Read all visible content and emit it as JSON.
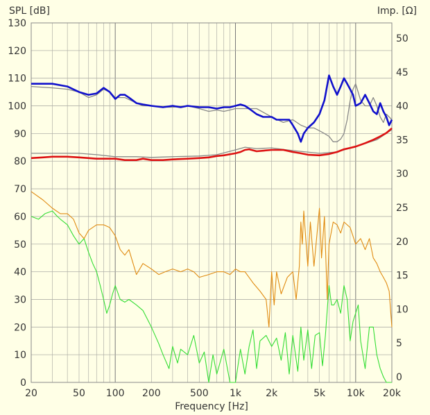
{
  "chart_data": {
    "type": "line",
    "left_axis_title": "SPL [dB]",
    "right_axis_title": "Imp. [Ω]",
    "xlabel": "Frequency [Hz]",
    "x_scale": "log",
    "xlim": [
      20,
      20000
    ],
    "ylim_left": [
      0,
      130
    ],
    "ylim_right": [
      0,
      50
    ],
    "grid": true,
    "x_tick_labels": [
      {
        "value": 20,
        "label": "20"
      },
      {
        "value": 50,
        "label": "50"
      },
      {
        "value": 100,
        "label": "100"
      },
      {
        "value": 200,
        "label": "200"
      },
      {
        "value": 500,
        "label": "500"
      },
      {
        "value": 1000,
        "label": "1k"
      },
      {
        "value": 2000,
        "label": "2k"
      },
      {
        "value": 5000,
        "label": "5k"
      },
      {
        "value": 10000,
        "label": "10k"
      },
      {
        "value": 20000,
        "label": "20k"
      }
    ],
    "y_left_ticks": [
      "0",
      "10",
      "20",
      "30",
      "40",
      "50",
      "60",
      "70",
      "80",
      "90",
      "100",
      "110",
      "120",
      "130"
    ],
    "y_right_ticks": [
      "0",
      "5",
      "10",
      "15",
      "20",
      "25",
      "30",
      "35",
      "40",
      "45",
      "50"
    ],
    "colors": {
      "background": "#ffffe6",
      "grid": "#b0b0a8",
      "frame": "#888888",
      "spl": "#1010cc",
      "spl_ref": "#888888",
      "impedance": "#dd1111",
      "impedance_ref": "#888888",
      "second_harmonic": "#e08a10",
      "third_harmonic": "#33dd33"
    },
    "series": [
      {
        "id": "spl_ref",
        "axis": "left",
        "x": [
          20,
          30,
          40,
          50,
          60,
          70,
          80,
          90,
          100,
          120,
          150,
          170,
          200,
          250,
          300,
          400,
          500,
          600,
          700,
          800,
          900,
          1000,
          1200,
          1500,
          2000,
          2500,
          3000,
          3500,
          4000,
          4500,
          5000,
          5500,
          6000,
          6500,
          7000,
          7500,
          8000,
          8500,
          9000,
          9500,
          10000,
          11000,
          12000,
          13000,
          14000,
          15000,
          16000,
          17000,
          18000,
          19000,
          20000
        ],
        "y": [
          107,
          106.5,
          106,
          105,
          103,
          104,
          106,
          105,
          103,
          103,
          101,
          100,
          100,
          99.5,
          99.5,
          100,
          99,
          98,
          98.5,
          98,
          98.5,
          99,
          99,
          99,
          96,
          94,
          95,
          93,
          92,
          92,
          91,
          90,
          89,
          87,
          87,
          88,
          90,
          95,
          102,
          106,
          108,
          102,
          100,
          100,
          103,
          100,
          96,
          94,
          97,
          96,
          95
        ]
      },
      {
        "id": "spl",
        "axis": "left",
        "x": [
          20,
          30,
          40,
          50,
          60,
          70,
          80,
          90,
          100,
          110,
          120,
          130,
          150,
          170,
          200,
          250,
          300,
          350,
          400,
          500,
          600,
          700,
          800,
          900,
          1000,
          1100,
          1200,
          1300,
          1500,
          1700,
          2000,
          2200,
          2500,
          2800,
          3000,
          3300,
          3500,
          3700,
          4000,
          4500,
          5000,
          5500,
          6000,
          6500,
          7000,
          7500,
          8000,
          8500,
          9000,
          9500,
          10000,
          11000,
          12000,
          13000,
          14000,
          15000,
          16000,
          17000,
          18000,
          19000,
          20000
        ],
        "y": [
          108,
          108,
          107,
          105,
          104,
          104.5,
          106.5,
          105,
          102.5,
          104,
          104,
          103,
          101,
          100.5,
          100,
          99.5,
          100,
          99.5,
          100,
          99.5,
          99.5,
          99,
          99.5,
          99.5,
          100,
          100.5,
          100,
          99,
          97,
          96,
          96,
          95,
          95,
          95,
          93,
          90,
          87,
          90,
          92,
          94,
          97,
          102,
          111,
          107,
          104,
          107,
          110,
          108,
          106,
          104,
          100,
          101,
          104,
          101,
          98,
          97,
          101,
          98,
          96,
          93,
          95
        ]
      },
      {
        "id": "imp_ref",
        "axis": "right",
        "x": [
          20,
          30,
          50,
          70,
          100,
          150,
          200,
          300,
          500,
          700,
          1000,
          1200,
          1500,
          2000,
          3000,
          5000,
          7000,
          10000,
          15000,
          20000
        ],
        "y": [
          33,
          33,
          33,
          32.8,
          32.5,
          32.5,
          32.4,
          32.5,
          32.6,
          32.8,
          33.5,
          33.9,
          33.7,
          33.8,
          33.4,
          33,
          33.2,
          34,
          35,
          36.5
        ]
      },
      {
        "id": "impedance",
        "axis": "right",
        "x": [
          20,
          25,
          30,
          40,
          50,
          60,
          70,
          80,
          100,
          120,
          150,
          170,
          200,
          250,
          300,
          400,
          500,
          600,
          700,
          800,
          1000,
          1100,
          1200,
          1300,
          1500,
          2000,
          2500,
          3000,
          3500,
          4000,
          5000,
          6000,
          7000,
          8000,
          9000,
          10000,
          12000,
          14000,
          16000,
          18000,
          20000
        ],
        "y": [
          32.3,
          32.4,
          32.5,
          32.5,
          32.4,
          32.3,
          32.2,
          32.2,
          32.2,
          32,
          32,
          32.2,
          32,
          32,
          32.1,
          32.2,
          32.3,
          32.4,
          32.6,
          32.7,
          33,
          33.2,
          33.5,
          33.6,
          33.3,
          33.5,
          33.5,
          33.2,
          33,
          32.8,
          32.7,
          32.9,
          33.2,
          33.6,
          33.8,
          34,
          34.5,
          35,
          35.5,
          36,
          36.7
        ]
      },
      {
        "id": "second_harmonic",
        "axis": "left",
        "x": [
          20,
          25,
          30,
          35,
          40,
          45,
          50,
          55,
          60,
          70,
          80,
          90,
          100,
          110,
          120,
          130,
          150,
          170,
          200,
          230,
          260,
          300,
          350,
          400,
          450,
          500,
          600,
          700,
          800,
          900,
          1000,
          1100,
          1200,
          1400,
          1600,
          1800,
          1900,
          2000,
          2100,
          2200,
          2400,
          2700,
          3000,
          3200,
          3400,
          3500,
          3600,
          3700,
          3800,
          4000,
          4200,
          4500,
          4800,
          5000,
          5200,
          5500,
          5800,
          6000,
          6500,
          7000,
          7500,
          8000,
          9000,
          10000,
          11000,
          12000,
          13000,
          14000,
          15000,
          16000,
          17000,
          18000,
          19000,
          20000
        ],
        "y": [
          69,
          66,
          63,
          61,
          61,
          59,
          54,
          52,
          55,
          57,
          57,
          56,
          53,
          48,
          46,
          48,
          39,
          43,
          41,
          39,
          40,
          41,
          40,
          41,
          40,
          38,
          39,
          40,
          40,
          39,
          41,
          40,
          40,
          36,
          33,
          30,
          20,
          40,
          28,
          40,
          32,
          38,
          40,
          30,
          42,
          58,
          50,
          62,
          55,
          42,
          58,
          42,
          55,
          63,
          45,
          60,
          30,
          50,
          58,
          57,
          54,
          58,
          56,
          50,
          52,
          48,
          52,
          45,
          43,
          40,
          38,
          36,
          33,
          20
        ]
      },
      {
        "id": "third_harmonic",
        "axis": "left",
        "x": [
          20,
          23,
          26,
          30,
          33,
          35,
          40,
          45,
          50,
          55,
          60,
          65,
          70,
          75,
          80,
          85,
          90,
          95,
          100,
          110,
          120,
          130,
          150,
          170,
          200,
          230,
          250,
          280,
          300,
          330,
          350,
          400,
          450,
          500,
          550,
          600,
          650,
          700,
          800,
          900,
          1000,
          1100,
          1200,
          1300,
          1400,
          1500,
          1600,
          1800,
          2000,
          2200,
          2400,
          2600,
          2800,
          3000,
          3300,
          3500,
          3700,
          4000,
          4300,
          4600,
          5000,
          5300,
          5600,
          6000,
          6300,
          6600,
          7000,
          7500,
          8000,
          8500,
          9000,
          9500,
          10000,
          10500,
          11000,
          12000,
          13000,
          14000,
          15000,
          16000,
          17000,
          18000,
          19000,
          20000
        ],
        "y": [
          60,
          59,
          61,
          62,
          60,
          59,
          57,
          53,
          50,
          52,
          47,
          43,
          40,
          35,
          30,
          25,
          28,
          32,
          35,
          30,
          29,
          30,
          28,
          26,
          20,
          14,
          10,
          5,
          13,
          7,
          12,
          10,
          17,
          7,
          11,
          0,
          10,
          3,
          12,
          0,
          0,
          12,
          3,
          13,
          19,
          5,
          15,
          17,
          13,
          16,
          8,
          18,
          3,
          17,
          4,
          20,
          8,
          19,
          5,
          17,
          18,
          6,
          17,
          35,
          28,
          28,
          30,
          25,
          35,
          30,
          15,
          22,
          25,
          28,
          15,
          5,
          20,
          20,
          10,
          5,
          2,
          0,
          -2,
          -5
        ]
      }
    ]
  }
}
